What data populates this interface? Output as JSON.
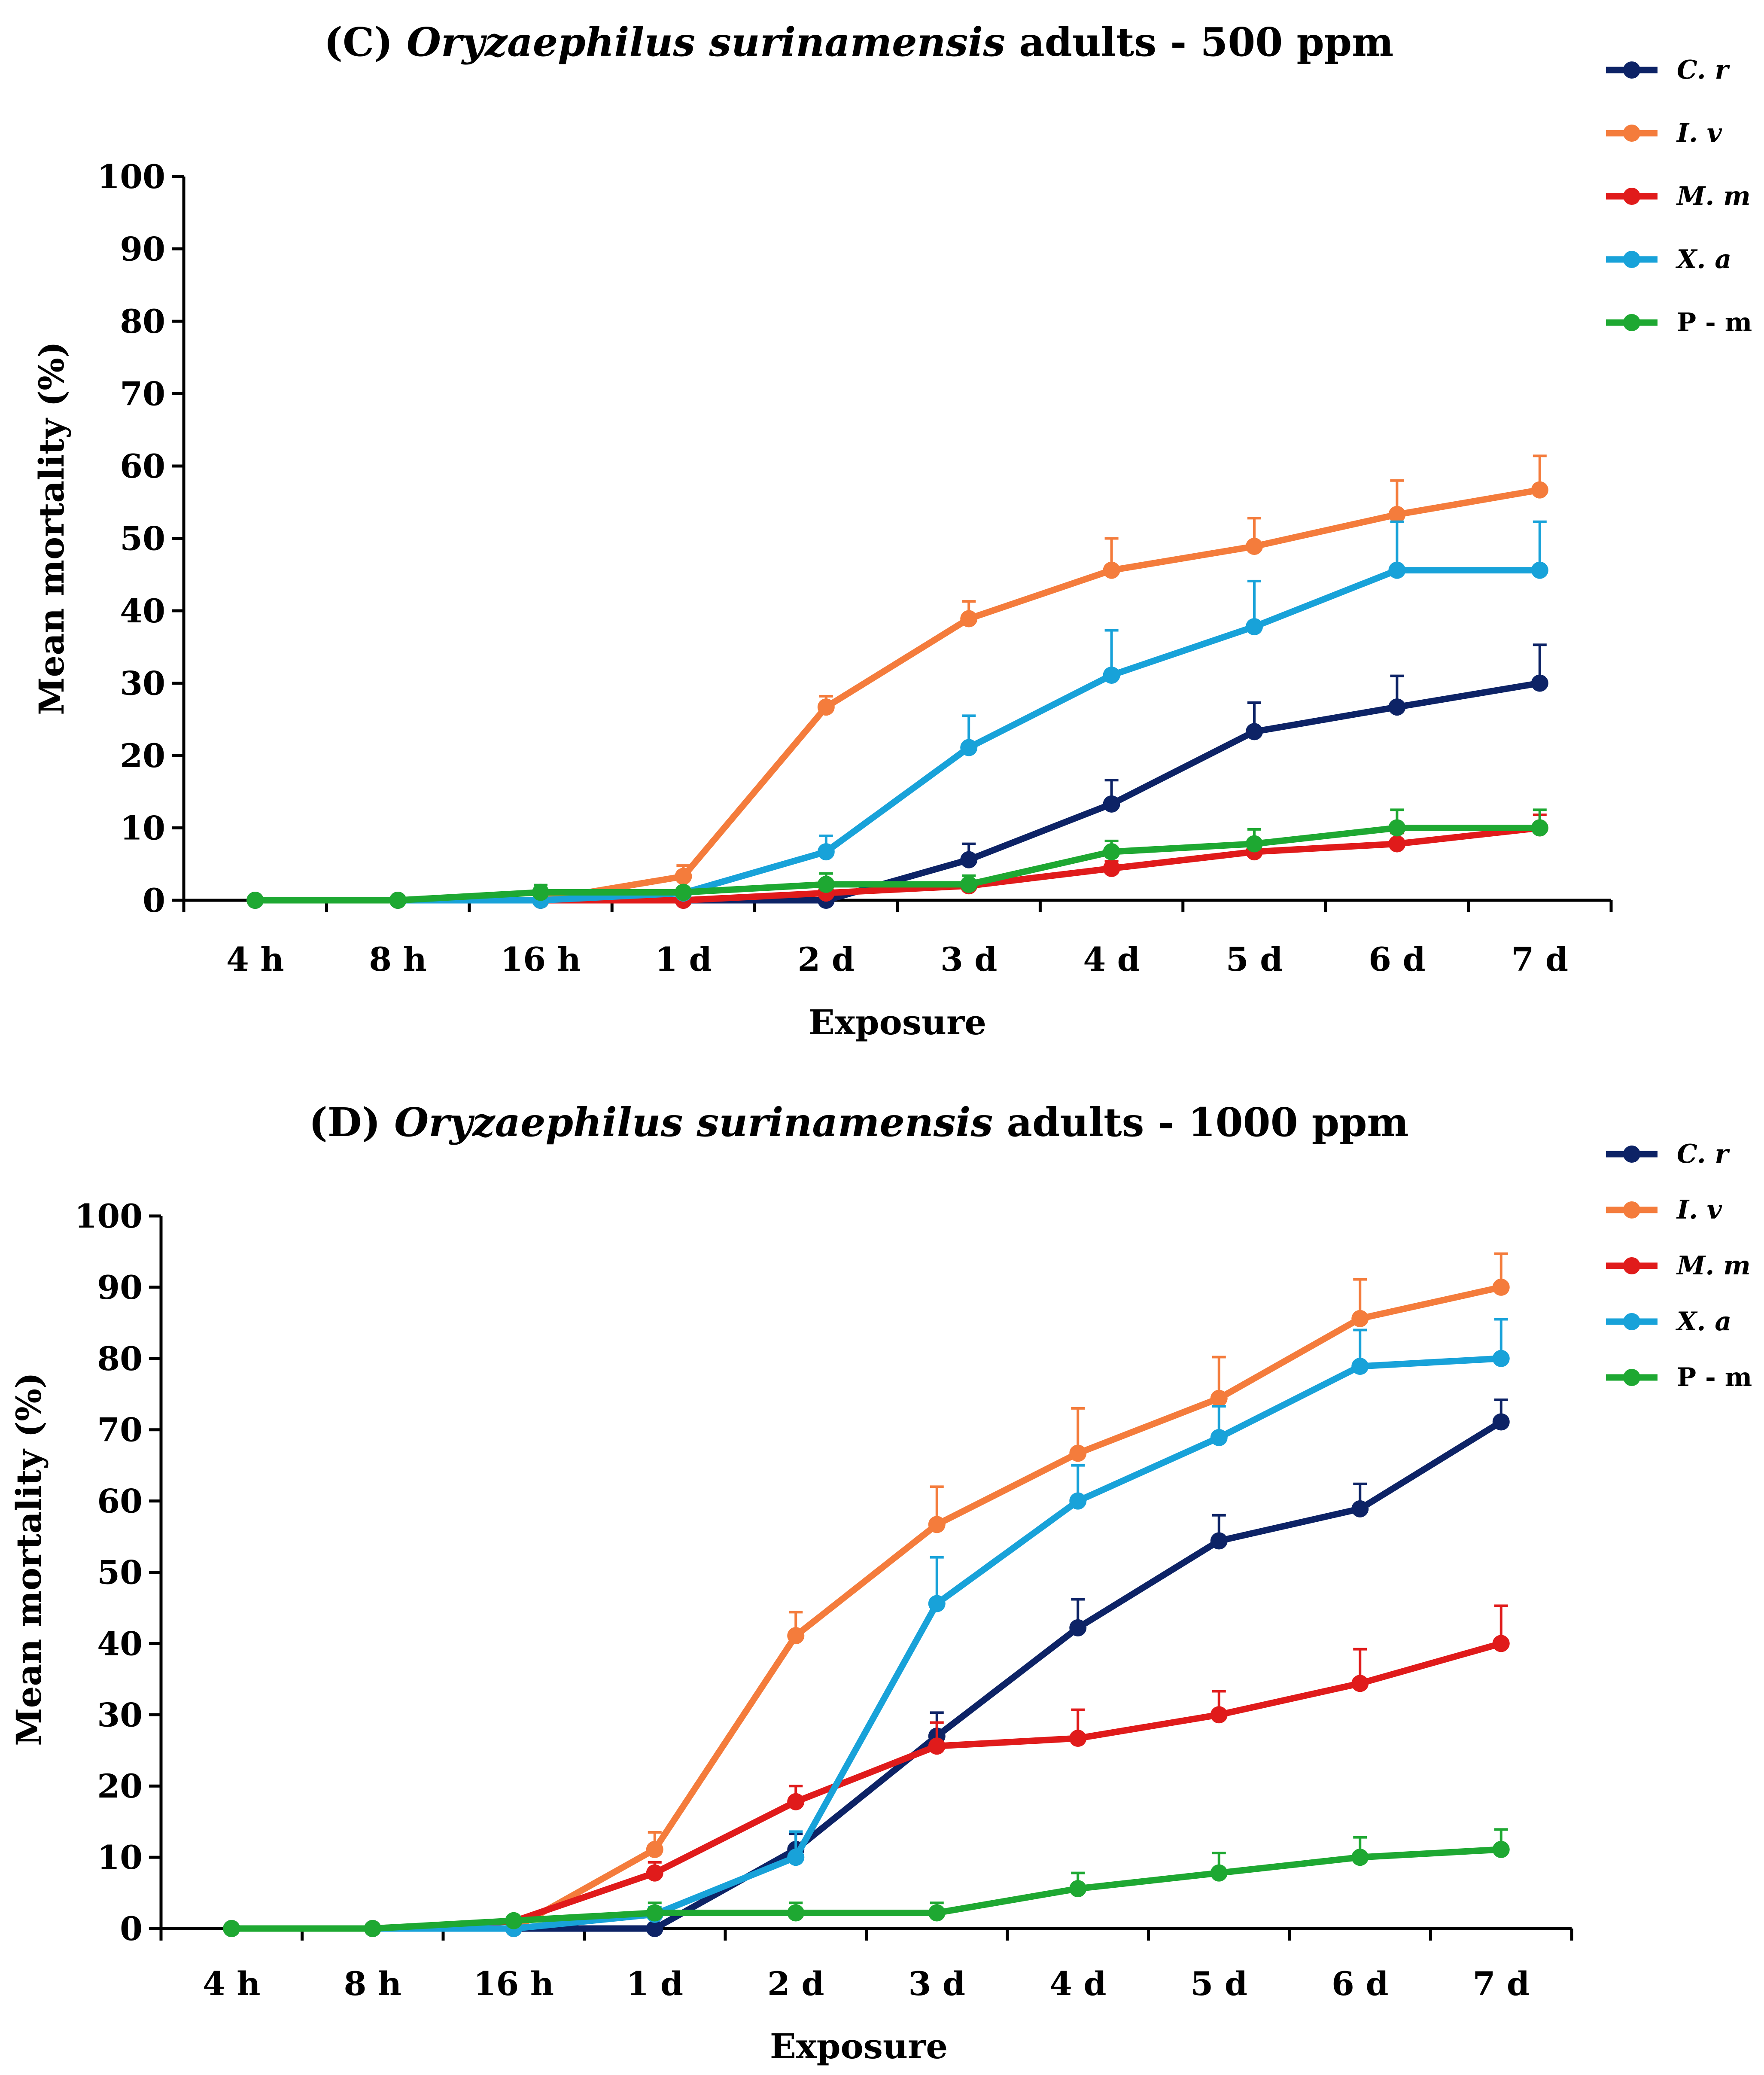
{
  "chart_data": [
    {
      "type": "line",
      "title_prefix": "(C) ",
      "title_species": "Oryzaephilus surinamensis",
      "title_suffix": " adults - 500 ppm",
      "xlabel": "Exposure",
      "ylabel": "Mean mortality (%)",
      "ylim": [
        0,
        100
      ],
      "yticks": [
        0,
        10,
        20,
        30,
        40,
        50,
        60,
        70,
        80,
        90,
        100
      ],
      "categories": [
        "4 h",
        "8 h",
        "16 h",
        "1 d",
        "2 d",
        "3 d",
        "4 d",
        "5 d",
        "6 d",
        "7 d"
      ],
      "legend_position": "top-right",
      "series": [
        {
          "name": "C. r",
          "italic": true,
          "color": "#0D2366",
          "values": [
            0,
            0,
            0,
            0,
            0,
            5.6,
            13.3,
            23.3,
            26.7,
            30.0
          ],
          "errors": [
            0,
            0,
            0,
            0,
            0,
            2.2,
            3.3,
            4.0,
            4.3,
            5.3
          ]
        },
        {
          "name": "I. v",
          "italic": true,
          "color": "#F47C3C",
          "values": [
            0,
            0,
            0,
            3.3,
            26.7,
            38.9,
            45.6,
            48.9,
            53.3,
            56.7
          ],
          "errors": [
            0,
            0,
            0,
            1.5,
            1.5,
            2.4,
            4.4,
            3.9,
            4.7,
            4.7
          ]
        },
        {
          "name": "M. m",
          "italic": true,
          "color": "#E01B1B",
          "values": [
            0,
            0,
            0,
            0,
            1.0,
            2.0,
            4.4,
            6.7,
            7.8,
            10.0
          ],
          "errors": [
            0,
            0,
            0,
            0,
            0,
            0,
            1.0,
            1.5,
            1.5,
            1.8
          ]
        },
        {
          "name": "X. a",
          "italic": true,
          "color": "#18A2D9",
          "values": [
            0,
            0,
            0,
            1.0,
            6.7,
            21.1,
            31.1,
            37.8,
            45.6,
            45.6
          ],
          "errors": [
            0,
            0,
            0,
            0,
            2.2,
            4.4,
            6.2,
            6.3,
            6.7,
            6.7
          ]
        },
        {
          "name": "P - m",
          "italic": false,
          "color": "#1EA832",
          "values": [
            0,
            0,
            1.1,
            1.1,
            2.2,
            2.2,
            6.7,
            7.8,
            10.0,
            10.0
          ],
          "errors": [
            0,
            0,
            1.0,
            0.5,
            1.5,
            1.2,
            1.5,
            2.0,
            2.5,
            2.5
          ]
        }
      ]
    },
    {
      "type": "line",
      "title_prefix": "(D) ",
      "title_species": "Oryzaephilus surinamensis",
      "title_suffix": " adults - 1000 ppm",
      "xlabel": "Exposure",
      "ylabel": "Mean mortality (%)",
      "ylim": [
        0,
        100
      ],
      "yticks": [
        0,
        10,
        20,
        30,
        40,
        50,
        60,
        70,
        80,
        90,
        100
      ],
      "categories": [
        "4 h",
        "8 h",
        "16 h",
        "1 d",
        "2 d",
        "3 d",
        "4 d",
        "5 d",
        "6 d",
        "7 d"
      ],
      "legend_position": "top-right",
      "series": [
        {
          "name": "C. r",
          "italic": true,
          "color": "#0D2366",
          "values": [
            0,
            0,
            0,
            0,
            11.1,
            27.0,
            42.2,
            54.4,
            58.9,
            71.1
          ],
          "errors": [
            0,
            0,
            0,
            0,
            2.2,
            3.3,
            4.0,
            3.6,
            3.5,
            3.1
          ]
        },
        {
          "name": "I. v",
          "italic": true,
          "color": "#F47C3C",
          "values": [
            0,
            0,
            0,
            11.1,
            41.1,
            56.7,
            66.7,
            74.4,
            85.6,
            90.0
          ],
          "errors": [
            0,
            0,
            0,
            2.4,
            3.3,
            5.3,
            6.3,
            5.8,
            5.5,
            4.7
          ]
        },
        {
          "name": "M. m",
          "italic": true,
          "color": "#E01B1B",
          "values": [
            0,
            0,
            1.0,
            7.8,
            17.8,
            25.6,
            26.7,
            30.0,
            34.4,
            40.0
          ],
          "errors": [
            0,
            0,
            0.5,
            1.5,
            2.2,
            3.3,
            4.0,
            3.3,
            4.8,
            5.3
          ]
        },
        {
          "name": "X. a",
          "italic": true,
          "color": "#18A2D9",
          "values": [
            0,
            0,
            0,
            2.0,
            10.0,
            45.6,
            60.0,
            68.9,
            78.9,
            80.0
          ],
          "errors": [
            0,
            0,
            0,
            1.0,
            3.6,
            6.5,
            5.0,
            4.4,
            5.1,
            5.5
          ]
        },
        {
          "name": "P - m",
          "italic": false,
          "color": "#1EA832",
          "values": [
            0,
            0,
            1.1,
            2.2,
            2.2,
            2.2,
            5.6,
            7.8,
            10.0,
            11.1
          ],
          "errors": [
            0,
            0,
            0.5,
            1.4,
            1.4,
            1.4,
            2.2,
            2.8,
            2.8,
            2.8
          ]
        }
      ]
    }
  ]
}
